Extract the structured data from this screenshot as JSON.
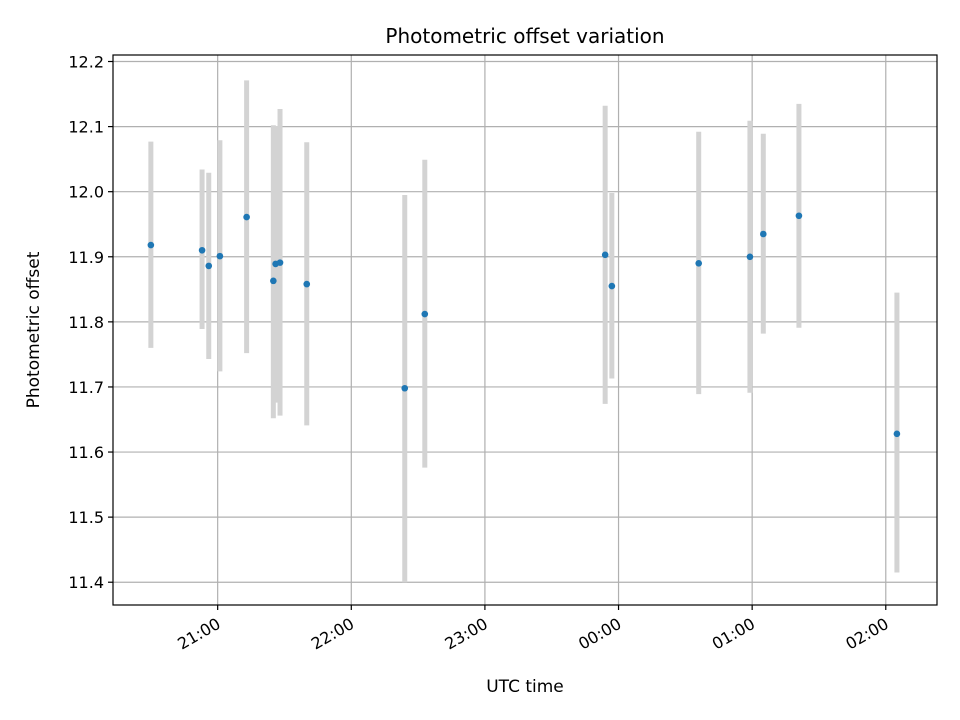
{
  "chart_data": {
    "type": "scatter",
    "title": "Photometric offset variation",
    "xlabel": "UTC time",
    "ylabel": "Photometric offset",
    "x_axis": {
      "kind": "time",
      "range": [
        "20:13",
        "02:23"
      ],
      "tick_values": [
        "21:00",
        "22:00",
        "23:00",
        "00:00",
        "01:00",
        "02:00"
      ],
      "tick_labels": [
        "21:00",
        "22:00",
        "23:00",
        "00:00",
        "01:00",
        "02:00"
      ]
    },
    "y_axis": {
      "range": [
        11.365,
        12.21
      ],
      "tick_values": [
        11.4,
        11.5,
        11.6,
        11.7,
        11.8,
        11.9,
        12.0,
        12.1,
        12.2
      ],
      "tick_labels": [
        "11.4",
        "11.5",
        "11.6",
        "11.7",
        "11.8",
        "11.9",
        "12.0",
        "12.1",
        "12.2"
      ]
    },
    "grid": true,
    "colors": {
      "point": "#1f77b4",
      "errorbar": "#d3d3d3",
      "grid": "#b0b0b0"
    },
    "points": [
      {
        "time": "20:30",
        "y": 11.918,
        "ylow": 11.76,
        "yhigh": 12.077
      },
      {
        "time": "20:53",
        "y": 11.91,
        "ylow": 11.789,
        "yhigh": 12.034
      },
      {
        "time": "20:56",
        "y": 11.886,
        "ylow": 11.743,
        "yhigh": 12.029
      },
      {
        "time": "21:01",
        "y": 11.901,
        "ylow": 11.724,
        "yhigh": 12.079
      },
      {
        "time": "21:13",
        "y": 11.961,
        "ylow": 11.752,
        "yhigh": 12.171
      },
      {
        "time": "21:25",
        "y": 11.863,
        "ylow": 11.652,
        "yhigh": 12.102
      },
      {
        "time": "21:26",
        "y": 11.889,
        "ylow": 11.676,
        "yhigh": 12.101
      },
      {
        "time": "21:28",
        "y": 11.891,
        "ylow": 11.656,
        "yhigh": 12.127
      },
      {
        "time": "21:40",
        "y": 11.858,
        "ylow": 11.641,
        "yhigh": 12.076
      },
      {
        "time": "22:24",
        "y": 11.698,
        "ylow": 11.4,
        "yhigh": 11.995
      },
      {
        "time": "22:33",
        "y": 11.812,
        "ylow": 11.576,
        "yhigh": 12.049
      },
      {
        "time": "23:54",
        "y": 11.903,
        "ylow": 11.674,
        "yhigh": 12.132
      },
      {
        "time": "23:57",
        "y": 11.855,
        "ylow": 11.713,
        "yhigh": 11.998
      },
      {
        "time": "00:36",
        "y": 11.89,
        "ylow": 11.689,
        "yhigh": 12.092
      },
      {
        "time": "00:59",
        "y": 11.9,
        "ylow": 11.691,
        "yhigh": 12.109
      },
      {
        "time": "01:05",
        "y": 11.935,
        "ylow": 11.782,
        "yhigh": 12.089
      },
      {
        "time": "01:21",
        "y": 11.963,
        "ylow": 11.791,
        "yhigh": 12.135
      },
      {
        "time": "02:05",
        "y": 11.628,
        "ylow": 11.415,
        "yhigh": 11.845
      }
    ]
  }
}
